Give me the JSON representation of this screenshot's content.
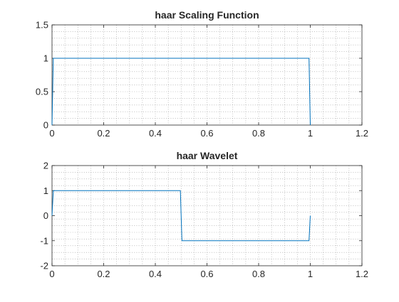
{
  "chart_data": [
    {
      "type": "line",
      "title": "haar Scaling Function",
      "xlabel": "",
      "ylabel": "",
      "xlim": [
        0,
        1.2
      ],
      "ylim": [
        0,
        1.5
      ],
      "xticks": [
        0,
        0.2,
        0.4,
        0.6,
        0.8,
        1,
        1.2
      ],
      "xticklabels": [
        "0",
        "0.2",
        "0.4",
        "0.6",
        "0.8",
        "1",
        "1.2"
      ],
      "yticks": [
        0,
        0.5,
        1,
        1.5
      ],
      "yticklabels": [
        "0",
        "0.5",
        "1",
        "1.5"
      ],
      "grid": "on (minor, dotted)",
      "series": [
        {
          "color": "#0072bd",
          "x": [
            0,
            0.005,
            0.995,
            1.0
          ],
          "y": [
            0,
            1,
            1,
            0
          ]
        }
      ]
    },
    {
      "type": "line",
      "title": "haar Wavelet",
      "xlabel": "",
      "ylabel": "",
      "xlim": [
        0,
        1.2
      ],
      "ylim": [
        -2,
        2
      ],
      "xticks": [
        0,
        0.2,
        0.4,
        0.6,
        0.8,
        1,
        1.2
      ],
      "xticklabels": [
        "0",
        "0.2",
        "0.4",
        "0.6",
        "0.8",
        "1",
        "1.2"
      ],
      "yticks": [
        -2,
        -1,
        0,
        1,
        2
      ],
      "yticklabels": [
        "-2",
        "-1",
        "0",
        "1",
        "2"
      ],
      "grid": "on (minor, dotted)",
      "series": [
        {
          "color": "#0072bd",
          "x": [
            0,
            0.005,
            0.497,
            0.503,
            0.995,
            1.0
          ],
          "y": [
            0,
            1,
            1,
            -1,
            -1,
            0
          ]
        }
      ]
    }
  ]
}
